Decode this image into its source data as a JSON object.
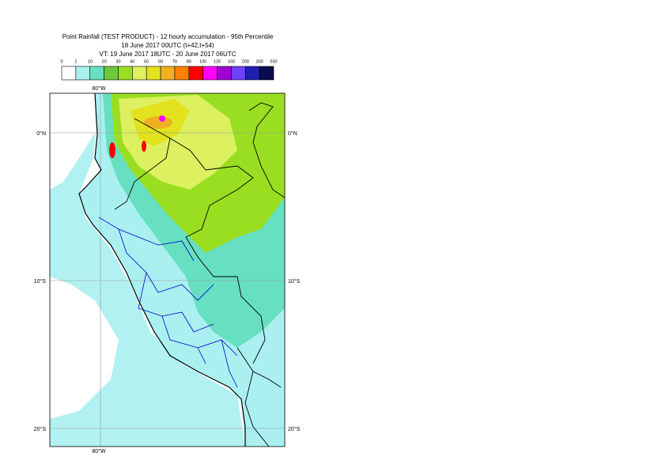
{
  "header": {
    "title_lines": [
      "Point Rainfall (TEST PRODUCT) - 12 hourly accumulation - 95th Percentile",
      "18 June 2017 00UTC (t+42,t+54)",
      "VT: 19 June 2017 18UTC - 20 June 2017 06UTC"
    ]
  },
  "legend": {
    "labels": [
      0,
      1,
      10,
      20,
      30,
      40,
      50,
      60,
      70,
      80,
      100,
      125,
      150,
      200,
      300,
      500
    ],
    "colors": [
      "#ffffff",
      "#aaf0f0",
      "#66e0c0",
      "#6cc83c",
      "#9ade22",
      "#dcf060",
      "#e2e21e",
      "#f0b020",
      "#ff8000",
      "#ff0000",
      "#ff00ff",
      "#a000d0",
      "#7040ff",
      "#2020b0",
      "#0a0a50"
    ]
  },
  "map": {
    "lon_labels": [
      "80°W"
    ],
    "lat_labels": [
      "0°N",
      "10°S",
      "20°S"
    ]
  }
}
